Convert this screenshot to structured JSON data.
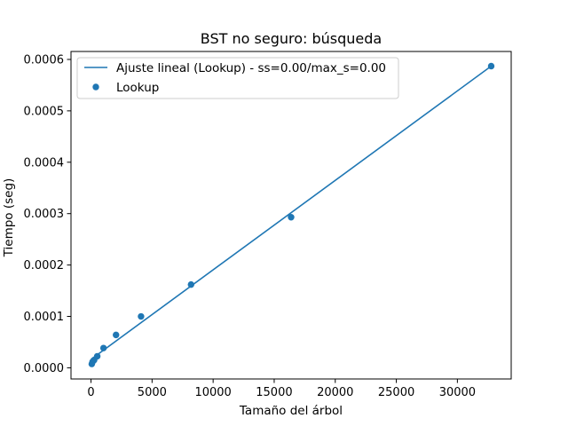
{
  "chart_data": {
    "type": "scatter",
    "title": "BST no seguro: búsqueda",
    "xlabel": "Tamaño del árbol",
    "ylabel": "Tiempo (seg)",
    "xlim": [
      -1638,
      34406
    ],
    "ylim": [
      -2.17e-05,
      0.0006155
    ],
    "xticks": [
      0,
      5000,
      10000,
      15000,
      20000,
      25000,
      30000
    ],
    "xtick_labels": [
      "0",
      "5000",
      "10000",
      "15000",
      "20000",
      "25000",
      "30000"
    ],
    "yticks": [
      0,
      0.0001,
      0.0002,
      0.0003,
      0.0004,
      0.0005,
      0.0006
    ],
    "ytick_labels": [
      "0.0000",
      "0.0001",
      "0.0002",
      "0.0003",
      "0.0004",
      "0.0005",
      "0.0006"
    ],
    "grid": false,
    "legend_position": "top-left",
    "series": [
      {
        "name": "Ajuste lineal (Lookup) - ss=0.00/max_s=0.00",
        "kind": "line",
        "color": "#1f77b4",
        "x": [
          0,
          32768
        ],
        "y": [
          1.65e-05,
          0.000587
        ]
      },
      {
        "name": "Lookup",
        "kind": "scatter",
        "color": "#1f77b4",
        "x": [
          64,
          128,
          256,
          512,
          1024,
          2048,
          4096,
          8192,
          16384,
          32768
        ],
        "y": [
          7.5e-06,
          1.15e-05,
          1.5e-05,
          2.25e-05,
          3.85e-05,
          6.4e-05,
          0.0001,
          0.000162,
          0.000293,
          0.000587
        ]
      }
    ]
  }
}
